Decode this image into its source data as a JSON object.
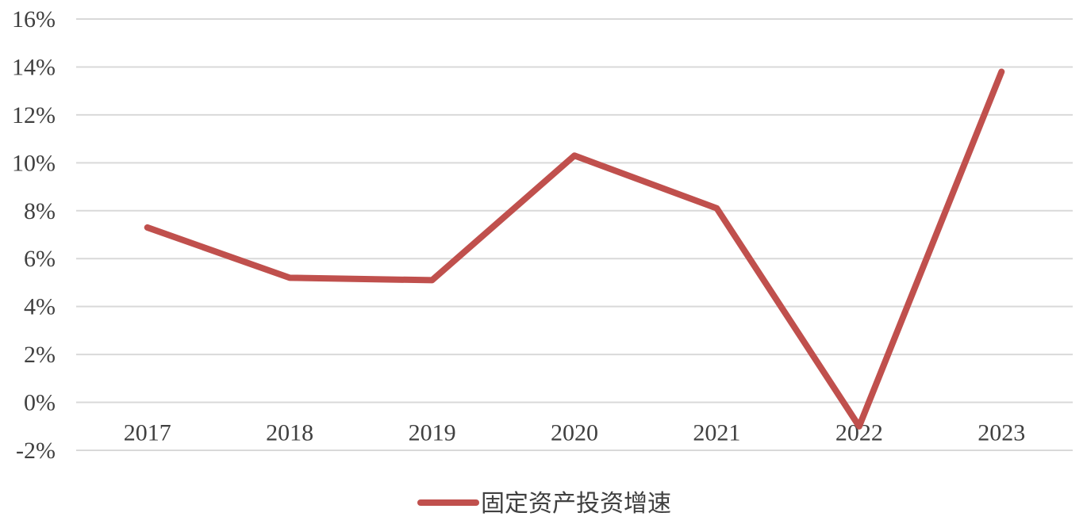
{
  "chart_data": {
    "type": "line",
    "categories": [
      "2017",
      "2018",
      "2019",
      "2020",
      "2021",
      "2022",
      "2023"
    ],
    "series": [
      {
        "name": "固定资产投资增速",
        "values": [
          7.3,
          5.2,
          5.1,
          10.3,
          8.1,
          -1.0,
          13.8
        ],
        "color": "#c0504d"
      }
    ],
    "ylim": [
      -2,
      16
    ],
    "yticks": [
      16,
      14,
      12,
      10,
      8,
      6,
      4,
      2,
      0,
      -2
    ],
    "ytick_labels": [
      "16%",
      "14%",
      "12%",
      "10%",
      "8%",
      "6%",
      "4%",
      "2%",
      "0%",
      "-2%"
    ],
    "grid": true,
    "legend": "bottom-center",
    "title": "",
    "xlabel": "",
    "ylabel": ""
  }
}
